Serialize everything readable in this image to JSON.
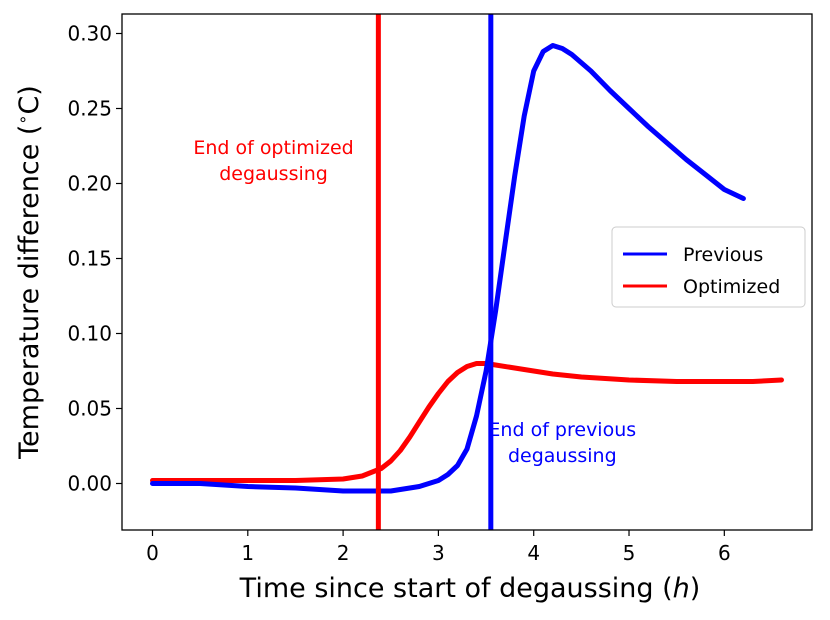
{
  "chart_data": {
    "type": "line",
    "title": "",
    "xlabel": "Time since start of degaussing (h)",
    "xlabel_parts": [
      "Time since start of degaussing (",
      "h",
      ")"
    ],
    "ylabel": "Temperature difference (°C)",
    "ylabel_parts": [
      "Temperature difference (",
      "∘",
      "C)"
    ],
    "xlim": [
      -0.32,
      6.92
    ],
    "ylim": [
      -0.031,
      0.313
    ],
    "xticks": [
      0,
      1,
      2,
      3,
      4,
      5,
      6
    ],
    "xtick_labels": [
      "0",
      "1",
      "2",
      "3",
      "4",
      "5",
      "6"
    ],
    "yticks": [
      0.0,
      0.05,
      0.1,
      0.15,
      0.2,
      0.25,
      0.3
    ],
    "ytick_labels": [
      "0.00",
      "0.05",
      "0.10",
      "0.15",
      "0.20",
      "0.25",
      "0.30"
    ],
    "grid": false,
    "legend_position": "center-right",
    "series": [
      {
        "name": "Previous",
        "color": "#0000ff",
        "x": [
          0.0,
          0.5,
          1.0,
          1.5,
          2.0,
          2.5,
          2.8,
          3.0,
          3.1,
          3.2,
          3.3,
          3.4,
          3.5,
          3.6,
          3.7,
          3.8,
          3.9,
          4.0,
          4.1,
          4.2,
          4.3,
          4.4,
          4.6,
          4.8,
          5.0,
          5.2,
          5.4,
          5.6,
          5.8,
          6.0,
          6.2
        ],
        "y": [
          0.0,
          0.0,
          -0.002,
          -0.003,
          -0.005,
          -0.005,
          -0.002,
          0.002,
          0.006,
          0.012,
          0.023,
          0.045,
          0.075,
          0.115,
          0.16,
          0.205,
          0.245,
          0.275,
          0.288,
          0.292,
          0.29,
          0.286,
          0.275,
          0.262,
          0.25,
          0.238,
          0.227,
          0.216,
          0.206,
          0.196,
          0.19
        ]
      },
      {
        "name": "Optimized",
        "color": "#ff0000",
        "x": [
          0.0,
          0.5,
          1.0,
          1.5,
          2.0,
          2.2,
          2.4,
          2.5,
          2.6,
          2.7,
          2.8,
          2.9,
          3.0,
          3.1,
          3.2,
          3.3,
          3.4,
          3.5,
          3.6,
          3.8,
          4.0,
          4.2,
          4.5,
          5.0,
          5.5,
          6.0,
          6.3,
          6.6
        ],
        "y": [
          0.002,
          0.002,
          0.002,
          0.002,
          0.003,
          0.005,
          0.01,
          0.015,
          0.022,
          0.031,
          0.041,
          0.051,
          0.06,
          0.068,
          0.074,
          0.078,
          0.08,
          0.08,
          0.079,
          0.077,
          0.075,
          0.073,
          0.071,
          0.069,
          0.068,
          0.068,
          0.068,
          0.069
        ]
      }
    ],
    "vlines": [
      {
        "name": "end-optimized",
        "x": 2.37,
        "color": "#ff0000"
      },
      {
        "name": "end-previous",
        "x": 3.55,
        "color": "#0000ff"
      }
    ],
    "annotations": [
      {
        "name": "annotation-end-optimized",
        "lines": [
          "End of optimized",
          "degaussing"
        ],
        "x": 1.27,
        "y": 0.205,
        "color": "#ff0000"
      },
      {
        "name": "annotation-end-previous",
        "lines": [
          "End of previous",
          "degaussing"
        ],
        "x": 4.3,
        "y": 0.017,
        "color": "#0000ff"
      }
    ]
  }
}
